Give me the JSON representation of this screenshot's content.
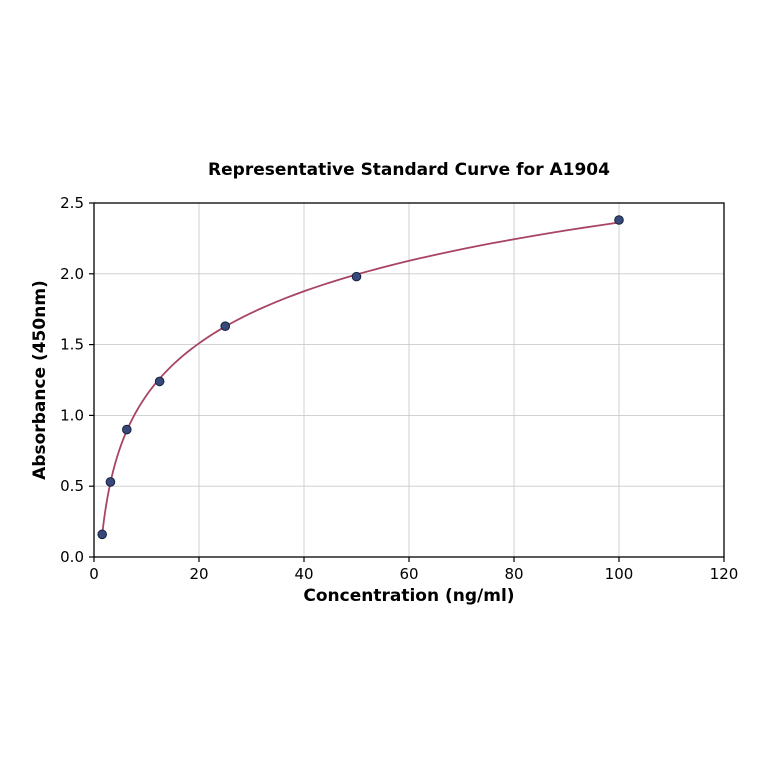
{
  "chart_data": {
    "type": "scatter",
    "title": "Representative Standard Curve for A1904",
    "xlabel": "Concentration (ng/ml)",
    "ylabel": "Absorbance (450nm)",
    "xlim": [
      0,
      120
    ],
    "ylim": [
      0,
      2.5
    ],
    "x_ticks": [
      0,
      20,
      40,
      60,
      80,
      100,
      120
    ],
    "x_tick_labels": [
      "0",
      "20",
      "40",
      "60",
      "80",
      "100",
      "120"
    ],
    "y_ticks": [
      0,
      0.5,
      1.0,
      1.5,
      2.0,
      2.5
    ],
    "y_tick_labels": [
      "0.0",
      "0.5",
      "1.0",
      "1.5",
      "2.0",
      "2.5"
    ],
    "grid": true,
    "legend": "none",
    "fit": "logarithmic",
    "points": [
      {
        "x": 1.56,
        "y": 0.16
      },
      {
        "x": 3.13,
        "y": 0.53
      },
      {
        "x": 6.25,
        "y": 0.9
      },
      {
        "x": 12.5,
        "y": 1.24
      },
      {
        "x": 25,
        "y": 1.63
      },
      {
        "x": 50,
        "y": 1.98
      },
      {
        "x": 100,
        "y": 2.38
      }
    ],
    "colors": {
      "curve": "#a84563",
      "point_fill": "#36497a",
      "point_edge": "#16213d",
      "grid": "#cbcbcb",
      "axis": "#000000",
      "background": "#ffffff"
    }
  }
}
